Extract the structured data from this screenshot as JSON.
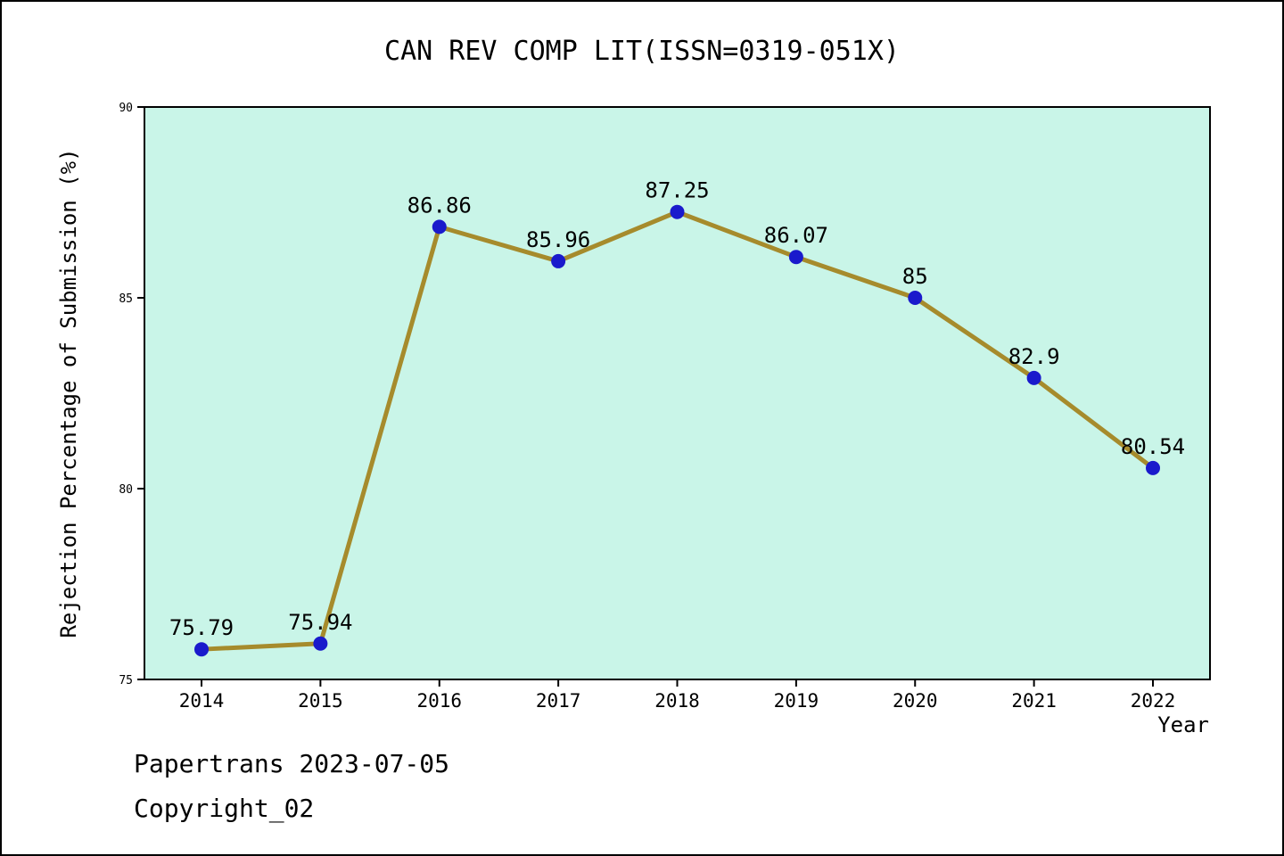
{
  "footer": {
    "line1": "Papertrans 2023-07-05",
    "line2": "Copyright_02"
  },
  "chart_data": {
    "type": "line",
    "title": "CAN REV COMP LIT(ISSN=0319-051X)",
    "xlabel": "Year",
    "ylabel": "Rejection Percentage of Submission (%)",
    "x": [
      2014,
      2015,
      2016,
      2017,
      2018,
      2019,
      2020,
      2021,
      2022
    ],
    "values": [
      75.79,
      75.94,
      86.86,
      85.96,
      87.25,
      86.07,
      85,
      82.9,
      80.54
    ],
    "labels": [
      "75.79",
      "75.94",
      "86.86",
      "85.96",
      "87.25",
      "86.07",
      "85",
      "82.9",
      "80.54"
    ],
    "ylim": [
      75,
      90
    ],
    "yticks": [
      75,
      80,
      85,
      90
    ],
    "grid": "off",
    "legend": "none",
    "colors": {
      "line": "#a68b2c",
      "marker": "#1a1acc",
      "plot_bg": "#c9f5e8",
      "axis": "#000000"
    }
  }
}
